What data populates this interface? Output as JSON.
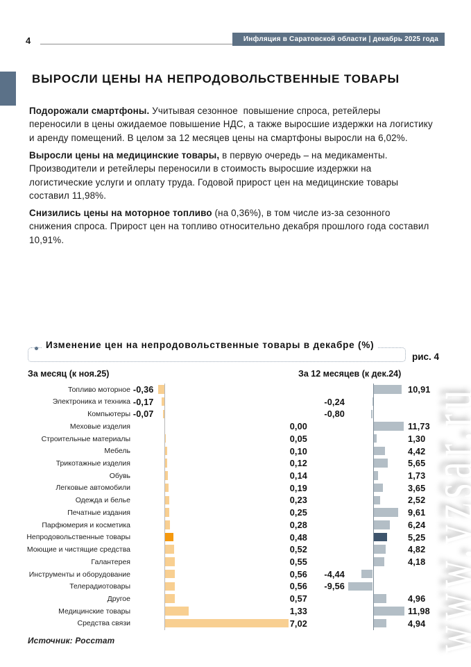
{
  "page": {
    "number": "4",
    "header": "Инфляция в Саратовской области | декабрь 2025 года",
    "title": "ВЫРОСЛИ ЦЕНЫ НА НЕПРОДОВОЛЬСТВЕННЫЕ ТОВАРЫ",
    "source": "Источник: Росстат",
    "watermark": "www.vzsar.ru"
  },
  "paragraphs": [
    {
      "bold": "Подорожали смартфоны.",
      "lines": [
        " Учитывая сезонное  повышение спроса, ретейлеры",
        "переносили в цены ожидаемое повышение НДС, а также выросшие издержки на логистику",
        "и аренду помещений. В целом за 12 месяцев цены на смартфоны выросли на 6,02%."
      ]
    },
    {
      "bold": "Выросли цены на медицинские товары,",
      "lines": [
        " в первую очередь – на медикаменты.",
        "Производители и ретейлеры переносили в стоимость выросшие издержки на",
        "логистические услуги и оплату труда. Годовой прирост цен на медицинские товары",
        "составил 11,98%."
      ]
    },
    {
      "bold": "Снизились цены на моторное топливо",
      "lines": [
        " (на 0,36%), в том числе из-за сезонного",
        "снижения спроса. Прирост цен на топливо относительно декабря прошлого года составил",
        "10,91%."
      ]
    }
  ],
  "chart_data": {
    "type": "bar",
    "title": "Изменение цен на непродовольственные товары в декабре (%)",
    "figure_label": "рис. 4",
    "left_title": "За месяц (к ноя.25)",
    "right_title": "За 12 месяцев (к дек.24)",
    "highlight_category": "Непродовольственные товары",
    "colors": {
      "month_bar": "#f8cf91",
      "month_highlight": "#f5990f",
      "year_bar": "#b3bec6",
      "year_highlight": "#3d546c"
    },
    "rows": [
      {
        "label": "Топливо моторное",
        "month": "-0,36",
        "year": "10,91",
        "month_val": -0.36,
        "year_val": 10.91
      },
      {
        "label": "Электроника и техника",
        "month": "-0,17",
        "year": "-0,24",
        "month_val": -0.17,
        "year_val": -0.24
      },
      {
        "label": "Компьютеры",
        "month": "-0,07",
        "year": "-0,80",
        "month_val": -0.07,
        "year_val": -0.8
      },
      {
        "label": "Меховые изделия",
        "month": "0,00",
        "year": "11,73",
        "month_val": 0.0,
        "year_val": 11.73
      },
      {
        "label": "Строительные материалы",
        "month": "0,05",
        "year": "1,30",
        "month_val": 0.05,
        "year_val": 1.3
      },
      {
        "label": "Мебель",
        "month": "0,10",
        "year": "4,42",
        "month_val": 0.1,
        "year_val": 4.42
      },
      {
        "label": "Трикотажные изделия",
        "month": "0,12",
        "year": "5,65",
        "month_val": 0.12,
        "year_val": 5.65
      },
      {
        "label": "Обувь",
        "month": "0,14",
        "year": "1,73",
        "month_val": 0.14,
        "year_val": 1.73
      },
      {
        "label": "Легковые автомобили",
        "month": "0,19",
        "year": "3,65",
        "month_val": 0.19,
        "year_val": 3.65
      },
      {
        "label": "Одежда и белье",
        "month": "0,23",
        "year": "2,52",
        "month_val": 0.23,
        "year_val": 2.52
      },
      {
        "label": "Печатные издания",
        "month": "0,25",
        "year": "9,61",
        "month_val": 0.25,
        "year_val": 9.61
      },
      {
        "label": "Парфюмерия и косметика",
        "month": "0,28",
        "year": "6,24",
        "month_val": 0.28,
        "year_val": 6.24
      },
      {
        "label": "Непродовольственные товары",
        "month": "0,48",
        "year": "5,25",
        "month_val": 0.48,
        "year_val": 5.25,
        "highlight": true
      },
      {
        "label": "Моющие и чистящие средства",
        "month": "0,52",
        "year": "4,82",
        "month_val": 0.52,
        "year_val": 4.82
      },
      {
        "label": "Галантерея",
        "month": "0,55",
        "year": "4,18",
        "month_val": 0.55,
        "year_val": 4.18
      },
      {
        "label": "Инструменты и оборудование",
        "month": "0,56",
        "year": "-4,44",
        "month_val": 0.56,
        "year_val": -4.44
      },
      {
        "label": "Телерадиотовары",
        "month": "0,56",
        "year": "-9,56",
        "month_val": 0.56,
        "year_val": -9.56
      },
      {
        "label": "Другое",
        "month": "0,57",
        "year": "4,96",
        "month_val": 0.57,
        "year_val": 4.96
      },
      {
        "label": "Медицинские товары",
        "month": "1,33",
        "year": "11,98",
        "month_val": 1.33,
        "year_val": 11.98
      },
      {
        "label": "Средства связи",
        "month": "7,02",
        "year": "4,94",
        "month_val": 7.02,
        "year_val": 4.94
      }
    ]
  }
}
